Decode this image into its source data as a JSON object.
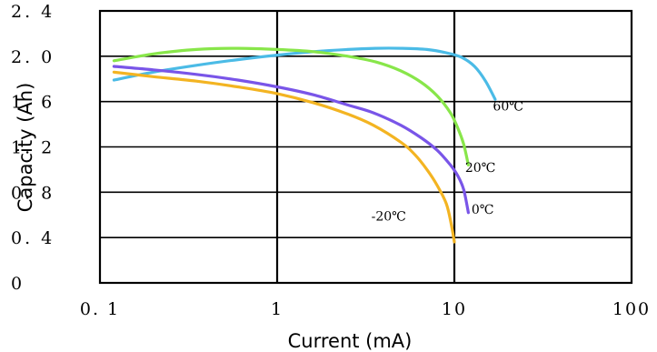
{
  "chart_data": {
    "type": "line",
    "xlabel": "Current (mA)",
    "ylabel": "Capacity (Ah)",
    "x_scale": "log",
    "xlim": [
      0.1,
      100
    ],
    "ylim": [
      0,
      2.4
    ],
    "x_ticks": [
      0.1,
      1,
      10,
      100
    ],
    "x_tick_labels": [
      "0. 1",
      "1",
      "10",
      "100"
    ],
    "y_ticks": [
      0,
      0.4,
      0.8,
      1.2,
      1.6,
      2.0,
      2.4
    ],
    "y_tick_labels": [
      "0",
      "0. 4",
      "0. 8",
      "1. 2",
      "1. 6",
      "2. 0",
      "2. 4"
    ],
    "grid": true,
    "series": [
      {
        "name": "60℃",
        "color": "#4bbbe6",
        "x": [
          0.12,
          0.2,
          0.35,
          0.6,
          1.0,
          1.6,
          2.5,
          3.6,
          5,
          7,
          9,
          11,
          13,
          15,
          17
        ],
        "y": [
          1.79,
          1.86,
          1.92,
          1.97,
          2.01,
          2.04,
          2.06,
          2.07,
          2.07,
          2.06,
          2.03,
          1.99,
          1.91,
          1.78,
          1.62
        ]
      },
      {
        "name": "20℃",
        "color": "#88e64a",
        "x": [
          0.12,
          0.2,
          0.35,
          0.6,
          1.0,
          1.6,
          2.5,
          3.6,
          5,
          6.5,
          8,
          9.5,
          10.5,
          11.3,
          12
        ],
        "y": [
          1.96,
          2.02,
          2.06,
          2.07,
          2.06,
          2.04,
          2.0,
          1.95,
          1.87,
          1.77,
          1.65,
          1.5,
          1.36,
          1.22,
          1.04
        ]
      },
      {
        "name": "0℃",
        "color": "#7955e8",
        "x": [
          0.12,
          0.2,
          0.35,
          0.6,
          1.0,
          1.6,
          2.5,
          3.5,
          5,
          6.5,
          8,
          9.5,
          10.5,
          11.3,
          12
        ],
        "y": [
          1.91,
          1.88,
          1.84,
          1.79,
          1.73,
          1.66,
          1.57,
          1.5,
          1.39,
          1.28,
          1.17,
          1.04,
          0.94,
          0.82,
          0.62
        ]
      },
      {
        "name": "-20℃",
        "color": "#f3b422",
        "x": [
          0.12,
          0.2,
          0.35,
          0.6,
          1.0,
          1.6,
          2.5,
          3.5,
          5,
          6,
          7,
          8,
          9,
          9.6,
          10
        ],
        "y": [
          1.86,
          1.82,
          1.78,
          1.73,
          1.67,
          1.59,
          1.49,
          1.39,
          1.24,
          1.13,
          1.0,
          0.86,
          0.7,
          0.52,
          0.36
        ]
      }
    ],
    "series_labels": [
      {
        "text": "60℃",
        "x": 16.5,
        "y": 1.52
      },
      {
        "text": "20℃",
        "x": 11.5,
        "y": 0.98
      },
      {
        "text": "0℃",
        "x": 12.5,
        "y": 0.61
      },
      {
        "text": "-20℃",
        "x": 3.4,
        "y": 0.55
      }
    ]
  }
}
